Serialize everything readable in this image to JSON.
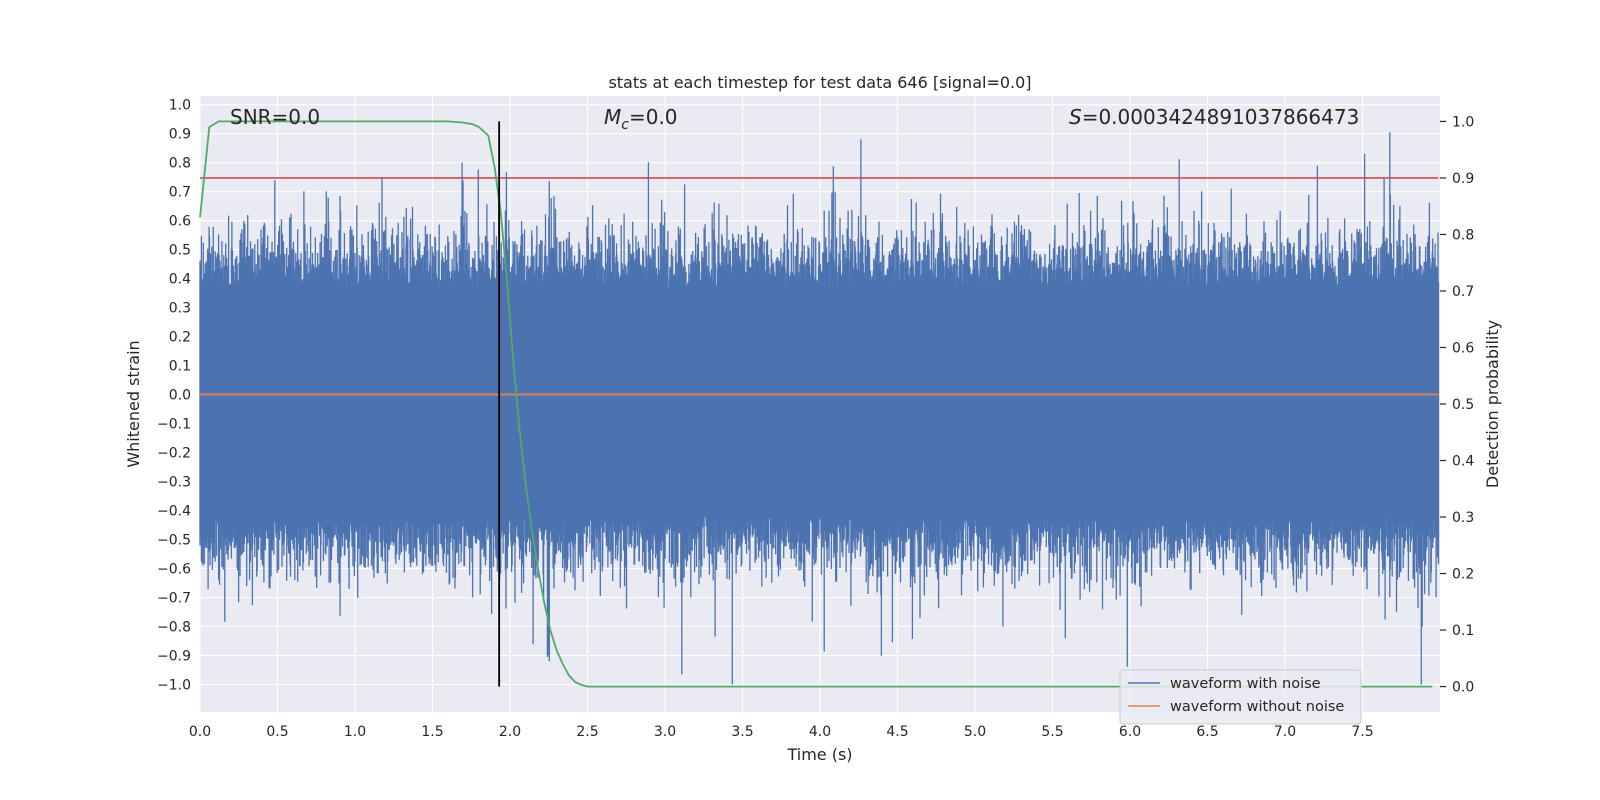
{
  "chart_data": {
    "type": "line",
    "title": "stats at each timestep for test data 646 [signal=0.0]",
    "xlabel": "Time (s)",
    "ylabel": "Whitened strain",
    "y2label": "Detection probability",
    "xlim": [
      0.0,
      8.0
    ],
    "ylim": [
      -1.095,
      1.03
    ],
    "y2lim": [
      -0.045,
      1.045
    ],
    "xticks": [
      "0.0",
      "0.5",
      "1.0",
      "1.5",
      "2.0",
      "2.5",
      "3.0",
      "3.5",
      "4.0",
      "4.5",
      "5.0",
      "5.5",
      "6.0",
      "6.5",
      "7.0",
      "7.5"
    ],
    "xtick_values": [
      0.0,
      0.5,
      1.0,
      1.5,
      2.0,
      2.5,
      3.0,
      3.5,
      4.0,
      4.5,
      5.0,
      5.5,
      6.0,
      6.5,
      7.0,
      7.5
    ],
    "yticks": [
      "1.0",
      "0.9",
      "0.8",
      "0.7",
      "0.6",
      "0.5",
      "0.4",
      "0.3",
      "0.2",
      "0.1",
      "0.0",
      "−0.1",
      "−0.2",
      "−0.3",
      "−0.4",
      "−0.5",
      "−0.6",
      "−0.7",
      "−0.8",
      "−0.9",
      "−1.0"
    ],
    "ytick_values": [
      1.0,
      0.9,
      0.8,
      0.7,
      0.6,
      0.5,
      0.4,
      0.3,
      0.2,
      0.1,
      0.0,
      -0.1,
      -0.2,
      -0.3,
      -0.4,
      -0.5,
      -0.6,
      -0.7,
      -0.8,
      -0.9,
      -1.0
    ],
    "y2ticks": [
      "1.0",
      "0.9",
      "0.8",
      "0.7",
      "0.6",
      "0.5",
      "0.4",
      "0.3",
      "0.2",
      "0.1",
      "0.0"
    ],
    "y2tick_values": [
      1.0,
      0.9,
      0.8,
      0.7,
      0.6,
      0.5,
      0.4,
      0.3,
      0.2,
      0.1,
      0.0
    ],
    "annotations": {
      "snr": "SNR=0.0",
      "mc_symbol": "M",
      "mc_sub": "c",
      "mc_value": "=0.0",
      "s_symbol": "S",
      "s_value": "=0.0003424891037866473"
    },
    "series": [
      {
        "name": "waveform with noise",
        "color": "#4c72b0",
        "style": "noise",
        "noise_band": [
          -0.42,
          0.37
        ],
        "peak_range": [
          -1.0,
          0.97
        ]
      },
      {
        "name": "waveform without noise",
        "color": "#dd8452",
        "constant": 0.0
      },
      {
        "name": "detection probability",
        "color": "#55a868",
        "axis": "right",
        "x": [
          0.0,
          0.06,
          0.12,
          0.2,
          0.4,
          0.8,
          1.2,
          1.6,
          1.7,
          1.76,
          1.8,
          1.86,
          1.9,
          1.94,
          1.98,
          2.02,
          2.06,
          2.1,
          2.14,
          2.18,
          2.22,
          2.26,
          2.3,
          2.34,
          2.38,
          2.42,
          2.46,
          2.5,
          3.0,
          4.0,
          5.0,
          6.0,
          7.0,
          7.95
        ],
        "y": [
          0.83,
          0.99,
          1.0,
          1.0,
          1.0,
          1.0,
          1.0,
          1.0,
          0.998,
          0.995,
          0.99,
          0.975,
          0.92,
          0.84,
          0.72,
          0.58,
          0.46,
          0.36,
          0.28,
          0.21,
          0.15,
          0.1,
          0.065,
          0.04,
          0.02,
          0.008,
          0.003,
          0.0,
          0.0,
          0.0,
          0.0,
          0.0,
          0.0,
          0.0
        ]
      },
      {
        "name": "threshold",
        "color": "#c44e52",
        "axis": "right",
        "constant": 0.9
      },
      {
        "name": "detection time",
        "color": "#000000",
        "axis": "right",
        "vline_x": 1.93,
        "span": [
          0.0,
          1.0
        ]
      }
    ],
    "legend": {
      "position": "lower-right",
      "entries": [
        "waveform with noise",
        "waveform without noise"
      ]
    },
    "grid": true,
    "background": "#eaeaf2"
  }
}
